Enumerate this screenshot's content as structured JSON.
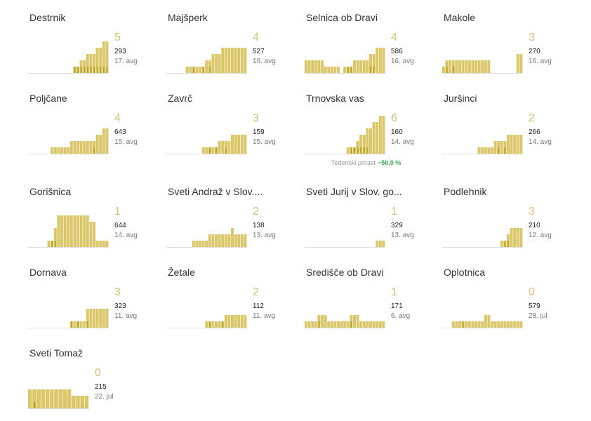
{
  "colors": {
    "bar": "#d9c76a",
    "bar_highlight": "#b8a21a",
    "baseline": "#dddddd",
    "big_number": "#d4c07a",
    "positive_change": "#3aa655"
  },
  "chart_data": [
    {
      "type": "bar",
      "name": "Destrnik",
      "big": "5",
      "count": "293",
      "avg": "17. avg",
      "values": [
        0,
        0,
        0,
        0,
        0,
        0,
        0,
        0,
        0,
        0,
        0,
        0,
        0,
        0,
        1,
        1,
        2,
        2,
        3,
        3,
        3,
        4,
        4,
        5,
        5
      ],
      "highlight": [
        14,
        15,
        16,
        17,
        18,
        19,
        20,
        21,
        22,
        23,
        24
      ]
    },
    {
      "type": "bar",
      "name": "Majšperk",
      "big": "4",
      "count": "527",
      "avg": "16. avg",
      "values": [
        0,
        0,
        0,
        0,
        0,
        0,
        1,
        1,
        1,
        1,
        1,
        1,
        2,
        2,
        3,
        3,
        3,
        4,
        4,
        4,
        4,
        4,
        4,
        4,
        4
      ],
      "highlight": [
        8,
        11,
        13
      ]
    },
    {
      "type": "bar",
      "name": "Selnica ob Dravi",
      "big": "4",
      "count": "586",
      "avg": "16. avg",
      "values": [
        2,
        2,
        2,
        2,
        2,
        2,
        1,
        1,
        1,
        1,
        1,
        0,
        1,
        1,
        1,
        2,
        2,
        2,
        2,
        2,
        3,
        3,
        4,
        4,
        4
      ],
      "highlight": [
        13,
        14,
        20,
        21
      ]
    },
    {
      "type": "bar",
      "name": "Makole",
      "big": "3",
      "count": "270",
      "avg": "16. avg",
      "values": [
        1,
        2,
        2,
        2,
        2,
        2,
        2,
        2,
        2,
        2,
        2,
        2,
        2,
        2,
        2,
        0,
        0,
        0,
        0,
        0,
        0,
        0,
        0,
        3,
        3
      ],
      "highlight": [
        1,
        3
      ]
    },
    {
      "type": "bar",
      "name": "Poljčane",
      "big": "4",
      "count": "643",
      "avg": "15. avg",
      "values": [
        0,
        0,
        0,
        0,
        0,
        0,
        0,
        1,
        1,
        1,
        1,
        1,
        1,
        2,
        2,
        2,
        2,
        2,
        2,
        2,
        2,
        3,
        3,
        4,
        4
      ],
      "highlight": [
        20
      ]
    },
    {
      "type": "bar",
      "name": "Zavrč",
      "big": "3",
      "count": "159",
      "avg": "15. avg",
      "values": [
        0,
        0,
        0,
        0,
        0,
        0,
        0,
        0,
        0,
        0,
        0,
        1,
        1,
        1,
        1,
        1,
        2,
        2,
        2,
        2,
        3,
        3,
        3,
        3,
        3
      ],
      "highlight": [
        13,
        15,
        18
      ]
    },
    {
      "type": "bar",
      "name": "Trnovska vas",
      "big": "6",
      "count": "160",
      "avg": "14. avg",
      "values": [
        0,
        0,
        0,
        0,
        0,
        0,
        0,
        0,
        0,
        0,
        0,
        0,
        0,
        1,
        1,
        1,
        2,
        3,
        3,
        4,
        4,
        5,
        5,
        6,
        6
      ],
      "highlight": [
        14,
        15,
        16,
        17,
        18,
        19
      ]
    },
    {
      "type": "bar",
      "name": "Juršinci",
      "big": "2",
      "count": "266",
      "avg": "14. avg",
      "values": [
        0,
        0,
        0,
        0,
        0,
        0,
        0,
        0,
        0,
        0,
        0,
        1,
        1,
        1,
        1,
        1,
        2,
        2,
        2,
        2,
        3,
        3,
        3,
        3,
        3
      ],
      "highlight": [
        17,
        19
      ]
    },
    {
      "type": "bar",
      "name": "Gorišnica",
      "big": "1",
      "count": "644",
      "avg": "14. avg",
      "values": [
        0,
        0,
        0,
        0,
        0,
        0,
        1,
        1,
        3,
        5,
        5,
        5,
        5,
        5,
        5,
        5,
        5,
        5,
        5,
        4,
        4,
        1,
        1,
        1,
        1
      ],
      "highlight": [
        7,
        8
      ]
    },
    {
      "type": "bar",
      "name": "Sveti Andraž v Slov....",
      "big": "2",
      "count": "138",
      "avg": "13. avg",
      "values": [
        0,
        0,
        0,
        0,
        0,
        0,
        0,
        0,
        1,
        1,
        1,
        1,
        1,
        2,
        2,
        2,
        2,
        2,
        2,
        2,
        3,
        2,
        2,
        2,
        2
      ],
      "highlight": []
    },
    {
      "type": "bar",
      "name": "Sveti Jurij v Slov. go...",
      "big": "1",
      "count": "329",
      "avg": "13. avg",
      "values": [
        0,
        0,
        0,
        0,
        0,
        0,
        0,
        0,
        0,
        0,
        0,
        0,
        0,
        0,
        0,
        0,
        0,
        0,
        0,
        0,
        0,
        0,
        1,
        1,
        1
      ],
      "highlight": []
    },
    {
      "type": "bar",
      "name": "Podlehnik",
      "big": "3",
      "count": "210",
      "avg": "12. avg",
      "values": [
        0,
        0,
        0,
        0,
        0,
        0,
        0,
        0,
        0,
        0,
        0,
        0,
        0,
        0,
        0,
        0,
        0,
        0,
        1,
        1,
        2,
        3,
        3,
        3,
        3
      ],
      "highlight": [
        19,
        20
      ]
    },
    {
      "type": "bar",
      "name": "Dornava",
      "big": "3",
      "count": "323",
      "avg": "11. avg",
      "values": [
        0,
        0,
        0,
        0,
        0,
        0,
        0,
        0,
        0,
        0,
        0,
        0,
        0,
        1,
        1,
        1,
        1,
        1,
        3,
        3,
        3,
        3,
        3,
        3,
        3
      ],
      "highlight": [
        13,
        15,
        18
      ]
    },
    {
      "type": "bar",
      "name": "Žetale",
      "big": "2",
      "count": "112",
      "avg": "11. avg",
      "values": [
        0,
        0,
        0,
        0,
        0,
        0,
        0,
        0,
        0,
        0,
        0,
        0,
        1,
        1,
        1,
        1,
        1,
        1,
        2,
        2,
        2,
        2,
        2,
        2,
        2
      ],
      "highlight": [
        13,
        17
      ]
    },
    {
      "type": "bar",
      "name": "Središče ob Dravi",
      "big": "1",
      "count": "171",
      "avg": "6. avg",
      "values": [
        1,
        1,
        1,
        1,
        2,
        2,
        2,
        1,
        1,
        1,
        1,
        1,
        1,
        1,
        2,
        2,
        2,
        1,
        1,
        1,
        1,
        1,
        1,
        1,
        1
      ],
      "highlight": [
        4,
        14
      ]
    },
    {
      "type": "bar",
      "name": "Oplotnica",
      "big": "0",
      "count": "579",
      "avg": "28. jul",
      "values": [
        0,
        0,
        0,
        1,
        1,
        1,
        1,
        1,
        1,
        1,
        1,
        1,
        1,
        2,
        2,
        1,
        1,
        1,
        1,
        1,
        1,
        1,
        1,
        1,
        1
      ],
      "highlight": [
        6
      ]
    },
    {
      "type": "bar",
      "name": "Sveti Tomaž",
      "big": "0",
      "count": "215",
      "avg": "22. jul",
      "values": [
        3,
        3,
        3,
        3,
        3,
        3,
        3,
        3,
        3,
        3,
        2,
        2,
        2,
        2
      ],
      "highlight": [
        1
      ]
    }
  ],
  "annotation": {
    "label": "Tedenski prirast",
    "value": "−50,0 %"
  }
}
